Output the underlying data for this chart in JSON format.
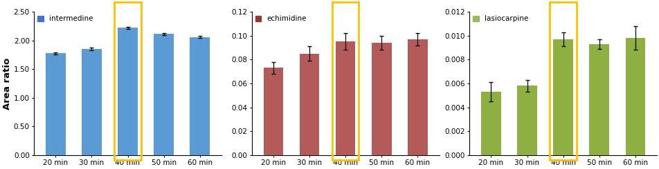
{
  "chart1": {
    "title": "intermedine",
    "bar_color": "#5B9BD5",
    "legend_color": "#4472C4",
    "categories": [
      "20 min",
      "30 min",
      "40 min",
      "50 min",
      "60 min"
    ],
    "values": [
      1.775,
      1.855,
      2.22,
      2.115,
      2.06
    ],
    "errors": [
      0.02,
      0.025,
      0.018,
      0.018,
      0.015
    ],
    "ylim": [
      0,
      2.5
    ],
    "yticks": [
      0.0,
      0.5,
      1.0,
      1.5,
      2.0,
      2.5
    ],
    "highlight_idx": 2
  },
  "chart2": {
    "title": "echimidine",
    "bar_color": "#B55A5A",
    "legend_color": "#943634",
    "categories": [
      "20 min",
      "30 min",
      "40 min",
      "50 min",
      "60 min"
    ],
    "values": [
      0.073,
      0.085,
      0.095,
      0.094,
      0.097
    ],
    "errors": [
      0.005,
      0.006,
      0.007,
      0.006,
      0.005
    ],
    "ylim": [
      0,
      0.12
    ],
    "yticks": [
      0.0,
      0.02,
      0.04,
      0.06,
      0.08,
      0.1,
      0.12
    ],
    "highlight_idx": 2
  },
  "chart3": {
    "title": "lasiocarpine",
    "bar_color": "#8DB040",
    "legend_color": "#9BBB59",
    "categories": [
      "20 min",
      "30 min",
      "40 min",
      "50 min",
      "60 min"
    ],
    "values": [
      0.0053,
      0.0058,
      0.0097,
      0.0093,
      0.0098
    ],
    "errors": [
      0.0008,
      0.0005,
      0.0006,
      0.0004,
      0.001
    ],
    "ylim": [
      0,
      0.012
    ],
    "yticks": [
      0.0,
      0.002,
      0.004,
      0.006,
      0.008,
      0.01,
      0.012
    ],
    "highlight_idx": 2
  },
  "ylabel": "Area ratio",
  "highlight_color": "#FFC000",
  "background_color": "#FFFFFF"
}
